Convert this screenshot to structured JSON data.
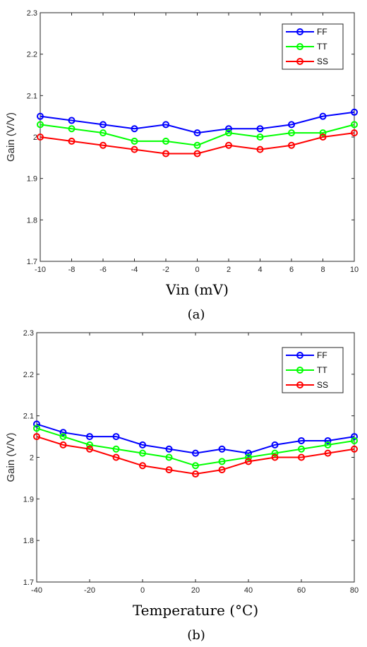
{
  "chart_data": [
    {
      "type": "line",
      "caption": "(a)",
      "xlabel": "Vin (mV)",
      "ylabel": "Gain (V/V)",
      "xlim": [
        -10,
        10
      ],
      "ylim": [
        1.7,
        2.3
      ],
      "x": [
        -10,
        -8,
        -6,
        -4,
        -2,
        0,
        2,
        4,
        6,
        8,
        10
      ],
      "xticks": [
        "-10",
        "-8",
        "-6",
        "-4",
        "-2",
        "0",
        "2",
        "4",
        "6",
        "8",
        "10"
      ],
      "yticks": [
        "1.7",
        "1.8",
        "1.9",
        "2",
        "2.1",
        "2.2",
        "2.3"
      ],
      "grid": false,
      "legend_position": "top-right",
      "series": [
        {
          "name": "FF",
          "color": "#0000ff",
          "values": [
            2.05,
            2.04,
            2.03,
            2.02,
            2.03,
            2.01,
            2.02,
            2.02,
            2.03,
            2.05,
            2.06
          ]
        },
        {
          "name": "TT",
          "color": "#00ff00",
          "values": [
            2.03,
            2.02,
            2.01,
            1.99,
            1.99,
            1.98,
            2.01,
            2.0,
            2.01,
            2.01,
            2.03
          ]
        },
        {
          "name": "SS",
          "color": "#ff0000",
          "values": [
            2.0,
            1.99,
            1.98,
            1.97,
            1.96,
            1.96,
            1.98,
            1.97,
            1.98,
            2.0,
            2.01
          ]
        }
      ]
    },
    {
      "type": "line",
      "caption": "(b)",
      "xlabel": "Temperature (°C)",
      "ylabel": "Gain (V/V)",
      "xlim": [
        -40,
        80
      ],
      "ylim": [
        1.7,
        2.3
      ],
      "x": [
        -40,
        -30,
        -20,
        -10,
        0,
        10,
        20,
        30,
        40,
        50,
        60,
        70,
        80
      ],
      "xticks": [
        "-40",
        "-20",
        "0",
        "20",
        "40",
        "60",
        "80"
      ],
      "yticks": [
        "1.7",
        "1.8",
        "1.9",
        "2",
        "2.1",
        "2.2",
        "2.3"
      ],
      "grid": false,
      "legend_position": "top-right",
      "series": [
        {
          "name": "FF",
          "color": "#0000ff",
          "values": [
            2.08,
            2.06,
            2.05,
            2.05,
            2.03,
            2.02,
            2.01,
            2.02,
            2.01,
            2.03,
            2.04,
            2.04,
            2.05
          ]
        },
        {
          "name": "TT",
          "color": "#00ff00",
          "values": [
            2.07,
            2.05,
            2.03,
            2.02,
            2.01,
            2.0,
            1.98,
            1.99,
            2.0,
            2.01,
            2.02,
            2.03,
            2.04
          ]
        },
        {
          "name": "SS",
          "color": "#ff0000",
          "values": [
            2.05,
            2.03,
            2.02,
            2.0,
            1.98,
            1.97,
            1.96,
            1.97,
            1.99,
            2.0,
            2.0,
            2.01,
            2.02
          ]
        }
      ]
    }
  ]
}
